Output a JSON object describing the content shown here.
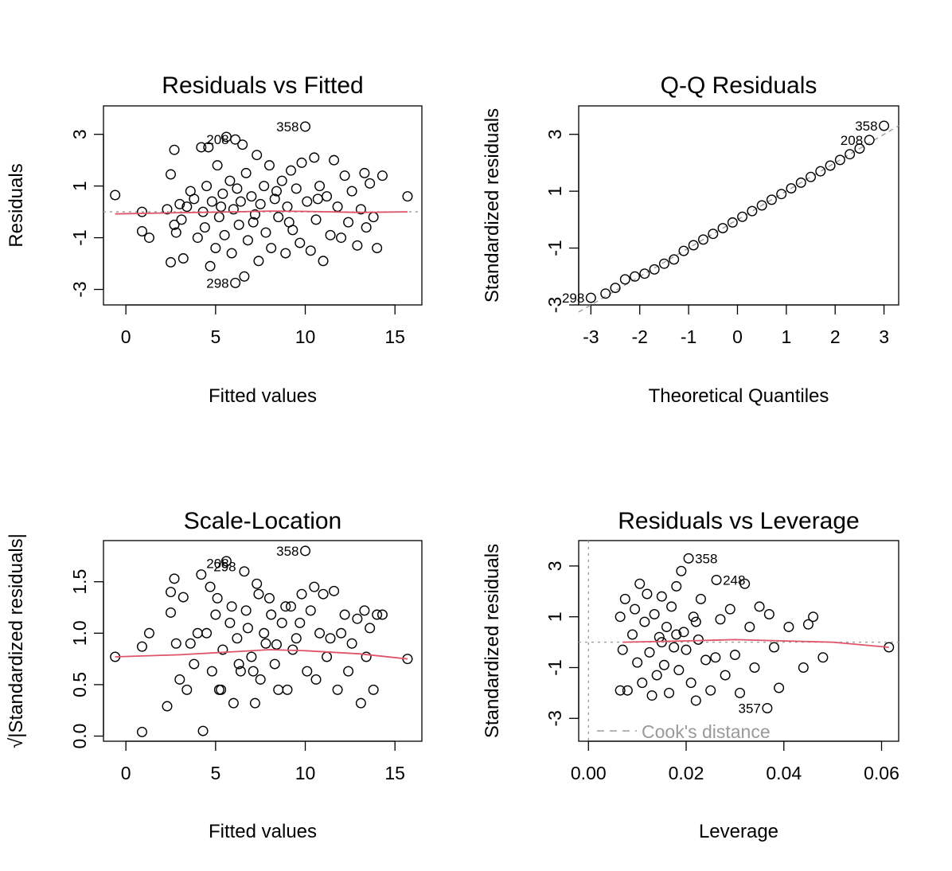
{
  "colors": {
    "point": "#000000",
    "smooth": "#DF536B",
    "reference": "#9E9E9E"
  },
  "chart_data": [
    {
      "type": "scatter",
      "title": "Residuals vs Fitted",
      "xlabel": "Fitted values",
      "ylabel": "Residuals",
      "xlim": [
        -1.25,
        16.5
      ],
      "ylim": [
        -3.6,
        4.1
      ],
      "xticks": [
        0,
        5,
        10,
        15
      ],
      "xtick_labels": [
        "0",
        "5",
        "10",
        "15"
      ],
      "yticks": [
        -3,
        -1,
        1,
        3
      ],
      "ytick_labels": [
        "-3",
        "-1",
        "1",
        "3"
      ],
      "reference_line": {
        "y": 0,
        "style": "dotted"
      },
      "smooth_line": [
        [
          -0.6,
          -0.08
        ],
        [
          3,
          -0.03
        ],
        [
          6,
          0.0
        ],
        [
          8,
          0.03
        ],
        [
          10,
          0.02
        ],
        [
          13,
          -0.02
        ],
        [
          15.7,
          0.0
        ]
      ],
      "labelled_points": [
        {
          "label": "358",
          "x": 10.0,
          "y": 3.3
        },
        {
          "label": "208",
          "x": 6.1,
          "y": 2.8
        },
        {
          "label": "298",
          "x": 6.1,
          "y": -2.75
        }
      ],
      "points": [
        [
          -0.6,
          0.65
        ],
        [
          0.9,
          0.0
        ],
        [
          0.9,
          -0.75
        ],
        [
          1.3,
          -1.0
        ],
        [
          2.3,
          0.1
        ],
        [
          2.5,
          1.45
        ],
        [
          2.5,
          -1.95
        ],
        [
          2.7,
          2.4
        ],
        [
          2.7,
          -0.5
        ],
        [
          2.8,
          -0.8
        ],
        [
          3.0,
          0.3
        ],
        [
          3.1,
          -0.3
        ],
        [
          3.2,
          -1.8
        ],
        [
          3.4,
          0.2
        ],
        [
          3.6,
          0.8
        ],
        [
          3.8,
          0.5
        ],
        [
          4.0,
          -1.0
        ],
        [
          4.2,
          2.5
        ],
        [
          4.3,
          0.0
        ],
        [
          4.4,
          -0.6
        ],
        [
          4.5,
          1.0
        ],
        [
          4.6,
          2.5
        ],
        [
          4.7,
          -2.1
        ],
        [
          4.8,
          0.4
        ],
        [
          5.0,
          -1.4
        ],
        [
          5.1,
          1.8
        ],
        [
          5.2,
          -0.2
        ],
        [
          5.4,
          0.7
        ],
        [
          5.5,
          -0.9
        ],
        [
          5.6,
          2.9
        ],
        [
          5.8,
          1.2
        ],
        [
          5.9,
          -1.6
        ],
        [
          6.0,
          0.1
        ],
        [
          6.1,
          2.8
        ],
        [
          6.1,
          -2.75
        ],
        [
          6.2,
          0.9
        ],
        [
          6.3,
          -0.5
        ],
        [
          6.5,
          2.6
        ],
        [
          6.6,
          -2.5
        ],
        [
          6.7,
          1.5
        ],
        [
          6.8,
          -1.1
        ],
        [
          7.0,
          0.6
        ],
        [
          7.1,
          -0.4
        ],
        [
          7.3,
          2.2
        ],
        [
          7.4,
          -1.9
        ],
        [
          7.5,
          0.3
        ],
        [
          7.7,
          1.0
        ],
        [
          7.8,
          -0.8
        ],
        [
          8.0,
          1.8
        ],
        [
          8.1,
          -1.4
        ],
        [
          8.3,
          0.5
        ],
        [
          8.5,
          -0.2
        ],
        [
          8.7,
          1.2
        ],
        [
          8.9,
          -1.6
        ],
        [
          9.0,
          0.2
        ],
        [
          9.2,
          1.6
        ],
        [
          9.3,
          -0.7
        ],
        [
          9.5,
          0.9
        ],
        [
          9.7,
          -1.2
        ],
        [
          9.8,
          1.9
        ],
        [
          10.0,
          3.3
        ],
        [
          10.1,
          0.4
        ],
        [
          10.3,
          -1.5
        ],
        [
          10.5,
          2.1
        ],
        [
          10.6,
          -0.3
        ],
        [
          10.8,
          1.0
        ],
        [
          11.0,
          -1.9
        ],
        [
          11.2,
          0.6
        ],
        [
          11.4,
          -0.9
        ],
        [
          11.6,
          2.0
        ],
        [
          11.8,
          0.2
        ],
        [
          12.0,
          -1.0
        ],
        [
          12.2,
          1.4
        ],
        [
          12.4,
          -0.4
        ],
        [
          12.6,
          0.8
        ],
        [
          12.9,
          -1.3
        ],
        [
          13.1,
          0.1
        ],
        [
          13.3,
          1.5
        ],
        [
          13.4,
          -0.6
        ],
        [
          13.6,
          1.1
        ],
        [
          13.8,
          -0.2
        ],
        [
          14.0,
          -1.4
        ],
        [
          14.3,
          1.4
        ],
        [
          15.7,
          0.6
        ],
        [
          5.3,
          0.2
        ],
        [
          6.4,
          0.4
        ],
        [
          7.2,
          -0.1
        ],
        [
          8.4,
          0.8
        ],
        [
          9.1,
          -0.4
        ],
        [
          10.7,
          0.5
        ]
      ]
    },
    {
      "type": "scatter",
      "title": "Q-Q Residuals",
      "xlabel": "Theoretical Quantiles",
      "ylabel": "Standardized residuals",
      "xlim": [
        -3.25,
        3.3
      ],
      "ylim": [
        -3.0,
        4.0
      ],
      "xticks": [
        -3,
        -2,
        -1,
        0,
        1,
        2,
        3
      ],
      "xtick_labels": [
        "-3",
        "-2",
        "-1",
        "0",
        "1",
        "2",
        "3"
      ],
      "yticks": [
        -3,
        -1,
        1,
        3
      ],
      "ytick_labels": [
        "-3",
        "-1",
        "1",
        "3"
      ],
      "reference_line": {
        "from": [
          -3.25,
          -3.25
        ],
        "to": [
          3.3,
          3.3
        ],
        "style": "dashed"
      },
      "labelled_points": [
        {
          "label": "358",
          "x": 3.0,
          "y": 3.3
        },
        {
          "label": "208",
          "x": 2.7,
          "y": 2.8
        },
        {
          "label": "298",
          "x": -3.0,
          "y": -2.75
        }
      ],
      "points": [
        [
          -3.0,
          -2.75
        ],
        [
          -2.7,
          -2.6
        ],
        [
          -2.5,
          -2.4
        ],
        [
          -2.3,
          -2.1
        ],
        [
          -2.1,
          -2.0
        ],
        [
          -1.9,
          -1.9
        ],
        [
          -1.7,
          -1.75
        ],
        [
          -1.5,
          -1.55
        ],
        [
          -1.3,
          -1.4
        ],
        [
          -1.1,
          -1.1
        ],
        [
          -0.9,
          -0.9
        ],
        [
          -0.7,
          -0.7
        ],
        [
          -0.5,
          -0.5
        ],
        [
          -0.3,
          -0.3
        ],
        [
          -0.1,
          -0.1
        ],
        [
          0.1,
          0.1
        ],
        [
          0.3,
          0.3
        ],
        [
          0.5,
          0.5
        ],
        [
          0.7,
          0.7
        ],
        [
          0.9,
          0.9
        ],
        [
          1.1,
          1.1
        ],
        [
          1.3,
          1.3
        ],
        [
          1.5,
          1.5
        ],
        [
          1.7,
          1.7
        ],
        [
          1.9,
          1.9
        ],
        [
          2.1,
          2.1
        ],
        [
          2.3,
          2.3
        ],
        [
          2.5,
          2.5
        ],
        [
          2.7,
          2.8
        ],
        [
          3.0,
          3.3
        ]
      ]
    },
    {
      "type": "scatter",
      "title": "Scale-Location",
      "xlabel": "Fitted values",
      "ylabel": "√|Standardized residuals|",
      "xlim": [
        -1.25,
        16.5
      ],
      "ylim": [
        -0.05,
        1.9
      ],
      "xticks": [
        0,
        5,
        10,
        15
      ],
      "xtick_labels": [
        "0",
        "5",
        "10",
        "15"
      ],
      "yticks": [
        0.0,
        0.5,
        1.0,
        1.5
      ],
      "ytick_labels": [
        "0.0",
        "0.5",
        "1.0",
        "1.5"
      ],
      "smooth_line": [
        [
          -0.6,
          0.77
        ],
        [
          3,
          0.79
        ],
        [
          6,
          0.82
        ],
        [
          8,
          0.84
        ],
        [
          10,
          0.83
        ],
        [
          13,
          0.8
        ],
        [
          15.7,
          0.75
        ]
      ],
      "labelled_points": [
        {
          "label": "358",
          "x": 10.0,
          "y": 1.8
        },
        {
          "label": "208",
          "x": 6.1,
          "y": 1.68
        },
        {
          "label": "298",
          "x": 6.5,
          "y": 1.65
        }
      ],
      "points": [
        [
          -0.6,
          0.77
        ],
        [
          0.9,
          0.04
        ],
        [
          0.9,
          0.87
        ],
        [
          1.3,
          1.0
        ],
        [
          2.3,
          0.29
        ],
        [
          2.5,
          1.2
        ],
        [
          2.5,
          1.4
        ],
        [
          2.7,
          1.53
        ],
        [
          2.8,
          0.9
        ],
        [
          3.0,
          0.55
        ],
        [
          3.2,
          1.35
        ],
        [
          3.4,
          0.45
        ],
        [
          3.6,
          0.9
        ],
        [
          3.8,
          0.7
        ],
        [
          4.0,
          1.0
        ],
        [
          4.2,
          1.57
        ],
        [
          4.3,
          0.05
        ],
        [
          4.5,
          1.0
        ],
        [
          4.7,
          1.45
        ],
        [
          4.8,
          0.63
        ],
        [
          5.0,
          1.18
        ],
        [
          5.1,
          1.34
        ],
        [
          5.2,
          0.45
        ],
        [
          5.4,
          0.84
        ],
        [
          5.6,
          1.7
        ],
        [
          5.8,
          1.1
        ],
        [
          5.9,
          1.26
        ],
        [
          6.0,
          0.32
        ],
        [
          6.2,
          0.95
        ],
        [
          6.3,
          0.7
        ],
        [
          6.6,
          1.6
        ],
        [
          6.7,
          1.22
        ],
        [
          6.8,
          1.05
        ],
        [
          7.0,
          0.77
        ],
        [
          7.1,
          0.63
        ],
        [
          7.3,
          1.48
        ],
        [
          7.4,
          1.38
        ],
        [
          7.5,
          0.55
        ],
        [
          7.7,
          1.0
        ],
        [
          7.8,
          0.9
        ],
        [
          8.0,
          1.34
        ],
        [
          8.1,
          1.18
        ],
        [
          8.3,
          0.7
        ],
        [
          8.5,
          0.45
        ],
        [
          8.7,
          1.1
        ],
        [
          8.9,
          1.26
        ],
        [
          9.0,
          0.45
        ],
        [
          9.2,
          1.26
        ],
        [
          9.3,
          0.84
        ],
        [
          9.5,
          0.95
        ],
        [
          9.7,
          1.1
        ],
        [
          9.8,
          1.38
        ],
        [
          10.0,
          1.8
        ],
        [
          10.1,
          0.63
        ],
        [
          10.3,
          1.22
        ],
        [
          10.5,
          1.45
        ],
        [
          10.6,
          0.55
        ],
        [
          10.8,
          1.0
        ],
        [
          11.0,
          1.38
        ],
        [
          11.2,
          0.77
        ],
        [
          11.4,
          0.95
        ],
        [
          11.6,
          1.41
        ],
        [
          11.8,
          0.45
        ],
        [
          12.0,
          1.0
        ],
        [
          12.2,
          1.18
        ],
        [
          12.4,
          0.63
        ],
        [
          12.6,
          0.9
        ],
        [
          12.9,
          1.14
        ],
        [
          13.1,
          0.32
        ],
        [
          13.3,
          1.22
        ],
        [
          13.4,
          0.77
        ],
        [
          13.6,
          1.05
        ],
        [
          13.8,
          0.45
        ],
        [
          14.0,
          1.18
        ],
        [
          14.3,
          1.18
        ],
        [
          15.7,
          0.75
        ],
        [
          5.3,
          0.45
        ],
        [
          6.4,
          0.63
        ],
        [
          7.2,
          0.32
        ],
        [
          8.4,
          0.89
        ]
      ]
    },
    {
      "type": "scatter",
      "title": "Residuals vs Leverage",
      "xlabel": "Leverage",
      "ylabel": "Standardized residuals",
      "xlim": [
        -0.002,
        0.0635
      ],
      "ylim": [
        -3.9,
        4.0
      ],
      "xticks": [
        0.0,
        0.02,
        0.04,
        0.06
      ],
      "xtick_labels": [
        "0.00",
        "0.02",
        "0.04",
        "0.06"
      ],
      "yticks": [
        -3,
        -1,
        1,
        3
      ],
      "ytick_labels": [
        "-3",
        "-1",
        "1",
        "3"
      ],
      "reference_lines": [
        {
          "x": 0,
          "style": "dotted"
        },
        {
          "y": 0,
          "style": "dotted"
        }
      ],
      "legend": {
        "position": "bottom-left",
        "label": "Cook's distance",
        "style": "dashed"
      },
      "smooth_line": [
        [
          0.007,
          0.0
        ],
        [
          0.02,
          0.05
        ],
        [
          0.03,
          0.1
        ],
        [
          0.04,
          0.05
        ],
        [
          0.05,
          0.0
        ],
        [
          0.0615,
          -0.2
        ]
      ],
      "labelled_points": [
        {
          "label": "358",
          "x": 0.0205,
          "y": 3.3
        },
        {
          "label": "248",
          "x": 0.0262,
          "y": 2.45
        },
        {
          "label": "357",
          "x": 0.0366,
          "y": -2.6
        }
      ],
      "points": [
        [
          0.0065,
          1.0
        ],
        [
          0.0065,
          -1.9
        ],
        [
          0.007,
          -0.3
        ],
        [
          0.0075,
          1.7
        ],
        [
          0.008,
          -1.9
        ],
        [
          0.009,
          0.3
        ],
        [
          0.0095,
          1.3
        ],
        [
          0.01,
          -0.8
        ],
        [
          0.0105,
          2.3
        ],
        [
          0.011,
          -1.6
        ],
        [
          0.0115,
          0.8
        ],
        [
          0.012,
          1.9
        ],
        [
          0.0125,
          -0.4
        ],
        [
          0.013,
          -2.1
        ],
        [
          0.0135,
          1.1
        ],
        [
          0.014,
          -1.3
        ],
        [
          0.0145,
          0.2
        ],
        [
          0.015,
          1.8
        ],
        [
          0.0155,
          -0.9
        ],
        [
          0.016,
          0.6
        ],
        [
          0.0165,
          -2.0
        ],
        [
          0.017,
          1.4
        ],
        [
          0.0175,
          -0.2
        ],
        [
          0.018,
          2.2
        ],
        [
          0.0185,
          -1.1
        ],
        [
          0.019,
          2.8
        ],
        [
          0.0195,
          0.4
        ],
        [
          0.0205,
          3.3
        ],
        [
          0.021,
          -1.6
        ],
        [
          0.0215,
          1.0
        ],
        [
          0.022,
          -2.3
        ],
        [
          0.0225,
          0.1
        ],
        [
          0.023,
          1.7
        ],
        [
          0.024,
          -0.7
        ],
        [
          0.025,
          -1.9
        ],
        [
          0.0262,
          2.45
        ],
        [
          0.027,
          0.9
        ],
        [
          0.028,
          -1.3
        ],
        [
          0.029,
          1.3
        ],
        [
          0.03,
          -0.5
        ],
        [
          0.031,
          -2.0
        ],
        [
          0.032,
          2.3
        ],
        [
          0.033,
          0.6
        ],
        [
          0.034,
          -1.0
        ],
        [
          0.035,
          1.4
        ],
        [
          0.0366,
          -2.6
        ],
        [
          0.037,
          1.1
        ],
        [
          0.038,
          -0.2
        ],
        [
          0.039,
          -1.8
        ],
        [
          0.041,
          0.6
        ],
        [
          0.044,
          -1.0
        ],
        [
          0.045,
          0.7
        ],
        [
          0.046,
          1.0
        ],
        [
          0.048,
          -0.6
        ],
        [
          0.0615,
          -0.2
        ],
        [
          0.015,
          0.0
        ],
        [
          0.018,
          0.3
        ],
        [
          0.02,
          -0.3
        ],
        [
          0.022,
          0.8
        ],
        [
          0.026,
          -0.6
        ]
      ]
    }
  ]
}
